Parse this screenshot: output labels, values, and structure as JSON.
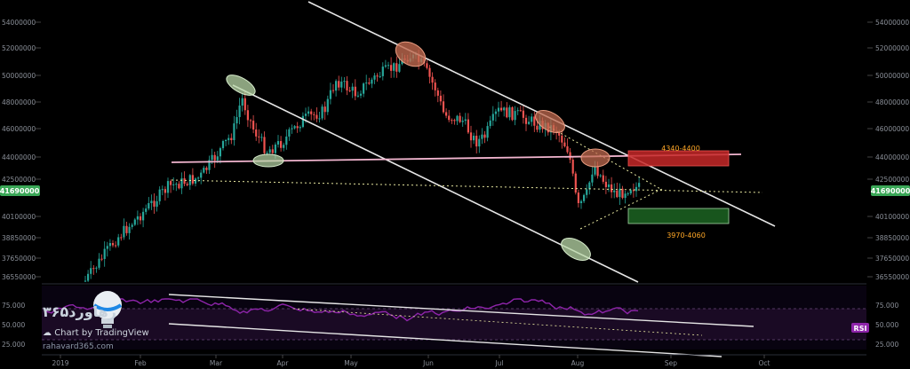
{
  "chart_data": {
    "type": "candlestick",
    "symbol_price_label": "41690000",
    "price_axis": {
      "min": 36550000,
      "max": 55000000,
      "ticks": [
        "54000000",
        "52000000",
        "50000000",
        "48000000",
        "46000000",
        "44000000",
        "42500000",
        "41690000",
        "40100000",
        "38850000",
        "37650000",
        "36550000"
      ]
    },
    "time_axis": {
      "labels": [
        "2019",
        "Feb",
        "Mar",
        "Apr",
        "May",
        "Jun",
        "Jul",
        "Aug",
        "Sep",
        "Oct"
      ]
    },
    "annotations": {
      "resistance_zone_label": "4340-4400",
      "support_zone_label": "3970-4060",
      "resistance_zone": [
        43400000,
        44000000
      ],
      "support_zone": [
        39700000,
        40600000
      ],
      "current_price": 41690000
    },
    "rsi": {
      "label": "RSI",
      "ticks": [
        "75.000",
        "50.000",
        "25.000"
      ]
    }
  },
  "watermark": {
    "site_fa": "رهاورد۳۶۵",
    "chart_word": "Chart",
    "by_word": "by",
    "platform": "TradingView",
    "url": "rahavard365.com"
  },
  "colors": {
    "bull": "#26a69a",
    "bear": "#ef5350",
    "rsi_line": "#8e24aa",
    "resistance": "#d32f2f",
    "support": "#2e7d32",
    "pink_line": "#f3b6d0",
    "price_label_bg": "#3aa757"
  }
}
